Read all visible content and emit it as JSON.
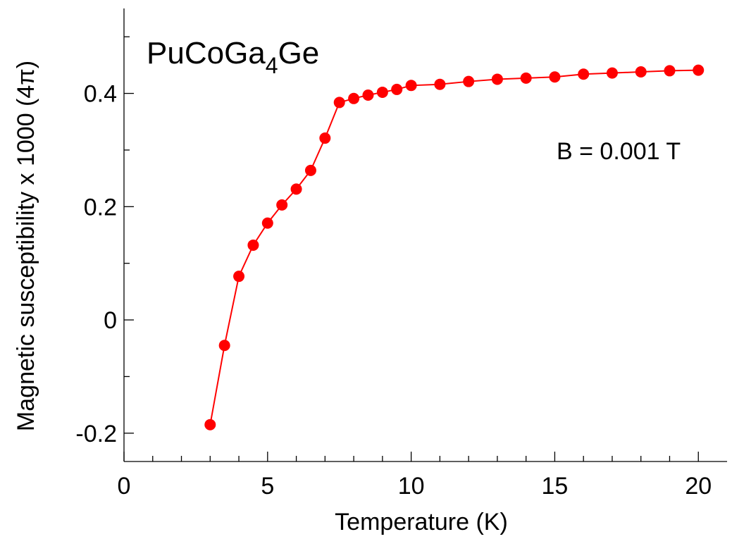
{
  "chart_data": {
    "type": "line",
    "title_parts": {
      "prefix": "PuCoGa",
      "subscript": "4",
      "suffix": "Ge"
    },
    "annotation": "B = 0.001 T",
    "xlabel": "Temperature (K)",
    "ylabel": "Magnetic susceptibility x 1000 (4π)",
    "xlim": [
      0,
      21
    ],
    "ylim": [
      -0.25,
      0.55
    ],
    "x_ticks": [
      0,
      5,
      10,
      15,
      20
    ],
    "x_tick_labels": [
      "0",
      "5",
      "10",
      "15",
      "20"
    ],
    "x_minor_ticks": [
      1,
      2,
      3,
      4,
      6,
      7,
      8,
      9,
      11,
      12,
      13,
      14,
      16,
      17,
      18,
      19
    ],
    "y_ticks": [
      -0.2,
      0,
      0.2,
      0.4
    ],
    "y_tick_labels": [
      "-0.2",
      "0",
      "0.2",
      "0.4"
    ],
    "y_minor_ticks": [
      -0.1,
      0.1,
      0.3,
      0.5
    ],
    "grid": false,
    "color": "#ff0000",
    "series": [
      {
        "x": [
          3,
          3.5,
          4,
          4.5,
          5,
          5.5,
          6,
          6.5,
          7,
          7.5,
          8,
          8.5,
          9,
          9.5,
          10,
          11,
          12,
          13,
          14,
          15,
          16,
          17,
          18,
          19,
          20
        ],
        "y": [
          -0.185,
          -0.045,
          0.077,
          0.132,
          0.171,
          0.203,
          0.231,
          0.264,
          0.321,
          0.384,
          0.391,
          0.397,
          0.402,
          0.407,
          0.414,
          0.416,
          0.421,
          0.425,
          0.427,
          0.429,
          0.434,
          0.436,
          0.438,
          0.44,
          0.441
        ]
      }
    ]
  }
}
